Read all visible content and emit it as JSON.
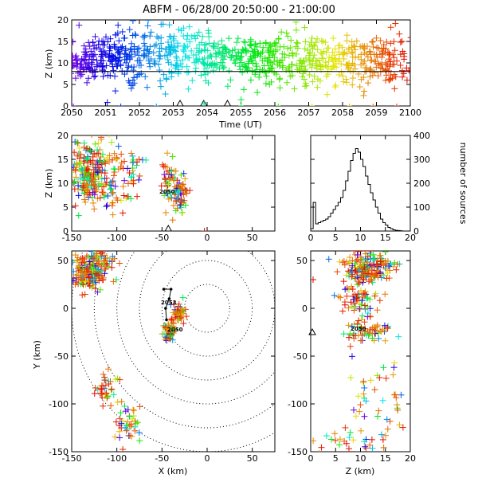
{
  "title": "ABFM - 06/28/00 20:50:00 - 21:00:00",
  "panels": {
    "time_height": {
      "ylabel": "Z (km)",
      "xlabel": "Time (UT)",
      "x_ticks": [
        "2050",
        "2051",
        "2052",
        "2053",
        "2054",
        "2055",
        "2056",
        "2057",
        "2058",
        "2059",
        "2100"
      ],
      "y_ticks": [
        "0",
        "5",
        "10",
        "15",
        "20"
      ]
    },
    "xz": {
      "ylabel": "Z (km)",
      "x_ticks": [
        "-150",
        "-100",
        "-50",
        "0",
        "50"
      ],
      "y_ticks": [
        "0",
        "5",
        "10",
        "15",
        "20"
      ],
      "annotations": [
        "2050"
      ]
    },
    "histogram": {
      "ylabel": "number of sources",
      "x_ticks": [
        "0",
        "5",
        "10",
        "15",
        "20"
      ],
      "y_ticks": [
        "0",
        "100",
        "200",
        "300",
        "400"
      ]
    },
    "plan": {
      "xlabel": "X (km)",
      "ylabel": "Y (km)",
      "x_ticks": [
        "-150",
        "-100",
        "-50",
        "0",
        "50"
      ],
      "y_ticks": [
        "-150",
        "-100",
        "-50",
        "0",
        "50"
      ],
      "annotations": [
        "2053",
        "2050"
      ]
    },
    "yz": {
      "xlabel": "Z (km)",
      "x_ticks": [
        "0",
        "5",
        "10",
        "15",
        "20"
      ],
      "y_ticks": [
        "-150",
        "-100",
        "-50",
        "0",
        "50"
      ],
      "annotations": [
        "2050"
      ]
    }
  },
  "chart_data": [
    {
      "type": "scatter",
      "panel": "time_height",
      "xlabel": "Time (UT)",
      "ylabel": "Z (km)",
      "xlim": [
        0,
        10
      ],
      "ylim": [
        0,
        20
      ],
      "color_scale": "time",
      "clusters": [
        {
          "x": 0.4,
          "y": 10.5,
          "sx": 0.35,
          "sy": 2.5,
          "n": 90
        },
        {
          "x": 1.2,
          "y": 11.5,
          "sx": 0.35,
          "sy": 2.8,
          "n": 90
        },
        {
          "x": 2.0,
          "y": 12.0,
          "sx": 0.35,
          "sy": 3.2,
          "n": 80
        },
        {
          "x": 3.0,
          "y": 12.0,
          "sx": 0.4,
          "sy": 3.5,
          "n": 90
        },
        {
          "x": 4.0,
          "y": 11.5,
          "sx": 0.4,
          "sy": 3.0,
          "n": 90
        },
        {
          "x": 5.0,
          "y": 11.0,
          "sx": 0.4,
          "sy": 3.0,
          "n": 90
        },
        {
          "x": 6.0,
          "y": 11.0,
          "sx": 0.4,
          "sy": 3.0,
          "n": 90
        },
        {
          "x": 7.0,
          "y": 11.0,
          "sx": 0.4,
          "sy": 3.0,
          "n": 90
        },
        {
          "x": 8.0,
          "y": 10.5,
          "sx": 0.4,
          "sy": 3.0,
          "n": 90
        },
        {
          "x": 9.2,
          "y": 10.5,
          "sx": 0.45,
          "sy": 3.0,
          "n": 110
        }
      ],
      "reference_line_y": 8,
      "ground_points": [
        {
          "x": 0.05,
          "y": 0
        },
        {
          "x": 1.45,
          "y": 0
        },
        {
          "x": 2.5,
          "y": 0
        },
        {
          "x": 5.0,
          "y": 0
        },
        {
          "x": 6.1,
          "y": 0
        },
        {
          "x": 7.1,
          "y": 0
        },
        {
          "x": 8.2,
          "y": 0
        },
        {
          "x": 8.9,
          "y": 0
        },
        {
          "x": 9.6,
          "y": 0
        }
      ],
      "stations": [
        {
          "x": 3.2,
          "y": 0
        },
        {
          "x": 3.9,
          "y": 0
        },
        {
          "x": 4.6,
          "y": 0
        }
      ]
    },
    {
      "type": "scatter",
      "panel": "xz",
      "xlabel": "",
      "ylabel": "Z (km)",
      "xlim": [
        -150,
        75
      ],
      "ylim": [
        0,
        20
      ],
      "clusters": [
        {
          "x": -133,
          "y": 12,
          "sx": 8,
          "sy": 3,
          "n": 160
        },
        {
          "x": -118,
          "y": 11,
          "sx": 8,
          "sy": 3.5,
          "n": 60
        },
        {
          "x": -103,
          "y": 11,
          "sx": 8,
          "sy": 3.5,
          "n": 40
        },
        {
          "x": -82,
          "y": 13,
          "sx": 6,
          "sy": 3.0,
          "n": 30
        },
        {
          "x": -42,
          "y": 10,
          "sx": 4,
          "sy": 3.0,
          "n": 45
        },
        {
          "x": -30,
          "y": 8,
          "sx": 5,
          "sy": 2.0,
          "n": 55
        }
      ],
      "stations": [
        {
          "x": -43,
          "y": 0
        }
      ],
      "ground_points": [
        {
          "x": -3,
          "y": 0
        }
      ]
    },
    {
      "type": "bar",
      "panel": "histogram",
      "xlabel": "",
      "ylabel": "number of sources",
      "xlim": [
        0,
        20
      ],
      "ylim": [
        0,
        400
      ],
      "bin_width": 0.5,
      "values": [
        10,
        120,
        30,
        35,
        40,
        45,
        50,
        60,
        75,
        90,
        105,
        120,
        140,
        170,
        210,
        250,
        295,
        325,
        345,
        330,
        300,
        270,
        230,
        195,
        160,
        130,
        100,
        75,
        50,
        35,
        25,
        15,
        10,
        5,
        3,
        2,
        1,
        0,
        0,
        0
      ]
    },
    {
      "type": "scatter",
      "panel": "plan",
      "xlabel": "X (km)",
      "ylabel": "Y (km)",
      "xlim": [
        -150,
        75
      ],
      "ylim": [
        -150,
        60
      ],
      "range_rings_km": [
        25,
        50,
        75,
        100,
        125,
        150
      ],
      "clusters": [
        {
          "x": -130,
          "y": 38,
          "sx": 10,
          "sy": 8,
          "n": 170
        },
        {
          "x": -115,
          "y": 52,
          "sx": 8,
          "sy": 5,
          "n": 40
        },
        {
          "x": -112,
          "y": -85,
          "sx": 6,
          "sy": 8,
          "n": 35
        },
        {
          "x": -88,
          "y": -120,
          "sx": 7,
          "sy": 10,
          "n": 40
        },
        {
          "x": -42,
          "y": -25,
          "sx": 4,
          "sy": 6,
          "n": 50
        },
        {
          "x": -32,
          "y": -5,
          "sx": 4,
          "sy": 7,
          "n": 45
        }
      ],
      "stations": [
        {
          "x": -40,
          "y": -25
        }
      ],
      "track": [
        {
          "x": -48,
          "y": 20
        },
        {
          "x": -40,
          "y": 20
        },
        {
          "x": -42,
          "y": 10
        },
        {
          "x": -46,
          "y": 0
        },
        {
          "x": -45,
          "y": -12
        }
      ]
    },
    {
      "type": "scatter",
      "panel": "yz",
      "xlabel": "Z (km)",
      "ylabel": "",
      "xlim": [
        0,
        20
      ],
      "ylim": [
        -150,
        60
      ],
      "clusters": [
        {
          "x": 11,
          "y": 42,
          "sx": 2.5,
          "sy": 8,
          "n": 190
        },
        {
          "x": 10,
          "y": 8,
          "sx": 2.0,
          "sy": 10,
          "n": 70
        },
        {
          "x": 11,
          "y": -25,
          "sx": 2.5,
          "sy": 5,
          "n": 60
        },
        {
          "x": 14,
          "y": -100,
          "sx": 3.5,
          "sy": 25,
          "n": 40
        },
        {
          "x": 8,
          "y": -140,
          "sx": 4,
          "sy": 8,
          "n": 30
        }
      ],
      "stations": [
        {
          "x": 0,
          "y": -25
        }
      ],
      "ground_points": [
        {
          "x": 0,
          "y": 30
        }
      ]
    }
  ]
}
